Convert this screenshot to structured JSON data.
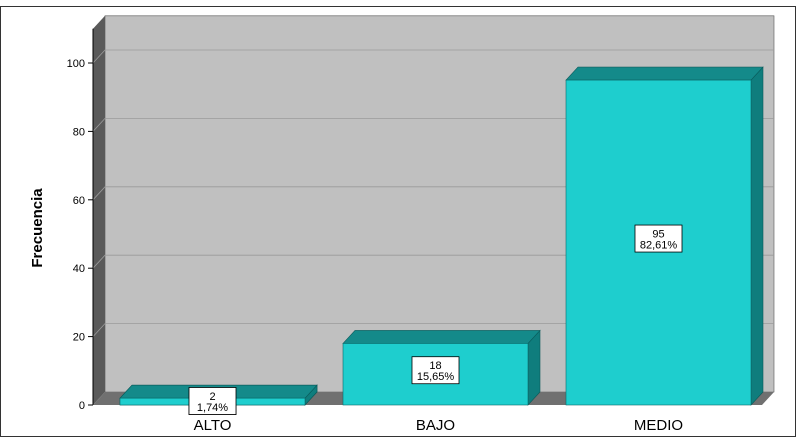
{
  "chart_data": {
    "type": "bar",
    "title": "",
    "xlabel": "",
    "ylabel": "Frecuencia",
    "categories": [
      "ALTO",
      "BAJO",
      "MEDIO"
    ],
    "values": [
      2,
      18,
      95
    ],
    "percent_labels": [
      "1,74%",
      "15,65%",
      "82,61%"
    ],
    "ylim": [
      0,
      110
    ],
    "yticks": [
      0,
      20,
      40,
      60,
      80,
      100
    ],
    "grid": true,
    "bar_color": "#1ecece",
    "bar_top_color": "#148a8a",
    "bar_side_color": "#0f7d7d",
    "back_wall_color": "#c0c0c0",
    "side_wall_color": "#5a5a5a",
    "floor_color": "#707070"
  }
}
